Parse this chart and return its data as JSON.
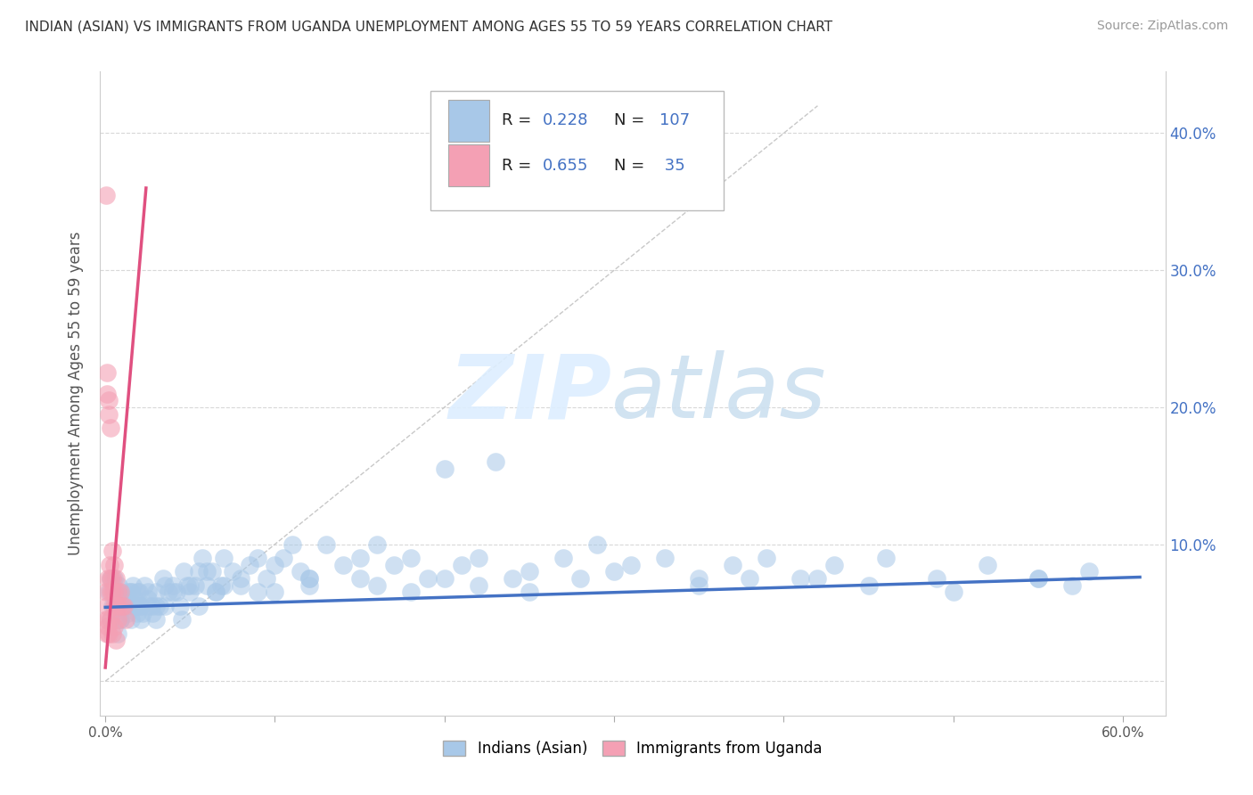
{
  "title": "INDIAN (ASIAN) VS IMMIGRANTS FROM UGANDA UNEMPLOYMENT AMONG AGES 55 TO 59 YEARS CORRELATION CHART",
  "source": "Source: ZipAtlas.com",
  "ylabel": "Unemployment Among Ages 55 to 59 years",
  "xlim": [
    -0.003,
    0.625
  ],
  "ylim": [
    -0.025,
    0.445
  ],
  "xticks": [
    0.0,
    0.1,
    0.2,
    0.3,
    0.4,
    0.5,
    0.6
  ],
  "yticks": [
    0.0,
    0.1,
    0.2,
    0.3,
    0.4
  ],
  "xticklabels": [
    "0.0%",
    "",
    "",
    "",
    "",
    "",
    "60.0%"
  ],
  "left_yticklabels": [
    "",
    "",
    "",
    "",
    ""
  ],
  "right_yticklabels": [
    "",
    "10.0%",
    "20.0%",
    "30.0%",
    "40.0%"
  ],
  "blue_color": "#a8c8e8",
  "pink_color": "#f4a0b4",
  "blue_line_color": "#4472c4",
  "pink_line_color": "#e05080",
  "grid_color": "#d8d8d8",
  "grey_line_color": "#c8c8c8",
  "blue_scatter_x": [
    0.002,
    0.004,
    0.005,
    0.007,
    0.008,
    0.009,
    0.01,
    0.012,
    0.013,
    0.015,
    0.016,
    0.017,
    0.018,
    0.019,
    0.02,
    0.021,
    0.022,
    0.023,
    0.025,
    0.027,
    0.028,
    0.03,
    0.032,
    0.034,
    0.035,
    0.037,
    0.04,
    0.042,
    0.044,
    0.046,
    0.048,
    0.05,
    0.053,
    0.055,
    0.057,
    0.06,
    0.063,
    0.065,
    0.068,
    0.07,
    0.075,
    0.08,
    0.085,
    0.09,
    0.095,
    0.1,
    0.105,
    0.11,
    0.115,
    0.12,
    0.13,
    0.14,
    0.15,
    0.16,
    0.17,
    0.18,
    0.19,
    0.2,
    0.21,
    0.22,
    0.23,
    0.24,
    0.25,
    0.27,
    0.29,
    0.31,
    0.33,
    0.35,
    0.37,
    0.39,
    0.41,
    0.43,
    0.46,
    0.49,
    0.52,
    0.55,
    0.58,
    0.003,
    0.005,
    0.007,
    0.009,
    0.011,
    0.013,
    0.015,
    0.017,
    0.019,
    0.021,
    0.025,
    0.03,
    0.035,
    0.045,
    0.055,
    0.065,
    0.08,
    0.1,
    0.12,
    0.15,
    0.18,
    0.22,
    0.28,
    0.35,
    0.42,
    0.5,
    0.57,
    0.003,
    0.007,
    0.01,
    0.015,
    0.02,
    0.025,
    0.03,
    0.04,
    0.05,
    0.06,
    0.07,
    0.09,
    0.12,
    0.16,
    0.2,
    0.25,
    0.3,
    0.38,
    0.45,
    0.55
  ],
  "blue_scatter_y": [
    0.065,
    0.055,
    0.075,
    0.055,
    0.07,
    0.045,
    0.06,
    0.055,
    0.05,
    0.065,
    0.07,
    0.06,
    0.055,
    0.05,
    0.065,
    0.055,
    0.05,
    0.07,
    0.065,
    0.055,
    0.05,
    0.065,
    0.055,
    0.075,
    0.07,
    0.065,
    0.07,
    0.065,
    0.055,
    0.08,
    0.07,
    0.065,
    0.07,
    0.08,
    0.09,
    0.07,
    0.08,
    0.065,
    0.07,
    0.09,
    0.08,
    0.075,
    0.085,
    0.09,
    0.075,
    0.085,
    0.09,
    0.1,
    0.08,
    0.075,
    0.1,
    0.085,
    0.09,
    0.1,
    0.085,
    0.09,
    0.075,
    0.155,
    0.085,
    0.09,
    0.16,
    0.075,
    0.08,
    0.09,
    0.1,
    0.085,
    0.09,
    0.075,
    0.085,
    0.09,
    0.075,
    0.085,
    0.09,
    0.075,
    0.085,
    0.075,
    0.08,
    0.045,
    0.055,
    0.035,
    0.045,
    0.055,
    0.065,
    0.045,
    0.055,
    0.065,
    0.045,
    0.055,
    0.045,
    0.055,
    0.045,
    0.055,
    0.065,
    0.07,
    0.065,
    0.07,
    0.075,
    0.065,
    0.07,
    0.075,
    0.07,
    0.075,
    0.065,
    0.07,
    0.075,
    0.065,
    0.055,
    0.065,
    0.055,
    0.06,
    0.055,
    0.065,
    0.07,
    0.08,
    0.07,
    0.065,
    0.075,
    0.07,
    0.075,
    0.065,
    0.08,
    0.075,
    0.07,
    0.075
  ],
  "pink_scatter_x": [
    0.0005,
    0.001,
    0.001,
    0.0015,
    0.002,
    0.002,
    0.0025,
    0.003,
    0.003,
    0.003,
    0.004,
    0.004,
    0.004,
    0.005,
    0.005,
    0.005,
    0.006,
    0.006,
    0.007,
    0.008,
    0.009,
    0.01,
    0.011,
    0.012,
    0.0005,
    0.001,
    0.0015,
    0.002,
    0.003,
    0.004,
    0.005,
    0.006,
    0.007,
    0.0005,
    0.001,
    0.0015
  ],
  "pink_scatter_y": [
    0.355,
    0.225,
    0.21,
    0.075,
    0.205,
    0.195,
    0.085,
    0.185,
    0.075,
    0.065,
    0.095,
    0.075,
    0.065,
    0.085,
    0.065,
    0.055,
    0.075,
    0.055,
    0.065,
    0.055,
    0.065,
    0.055,
    0.055,
    0.045,
    0.045,
    0.035,
    0.04,
    0.035,
    0.045,
    0.035,
    0.04,
    0.03,
    0.045,
    0.065,
    0.055,
    0.045
  ],
  "blue_line_x": [
    0.0,
    0.61
  ],
  "blue_line_y": [
    0.054,
    0.076
  ],
  "pink_line_x": [
    0.0,
    0.024
  ],
  "pink_line_y": [
    0.01,
    0.36
  ],
  "grey_line_x": [
    0.0,
    0.42
  ],
  "grey_line_y": [
    0.0,
    0.42
  ]
}
